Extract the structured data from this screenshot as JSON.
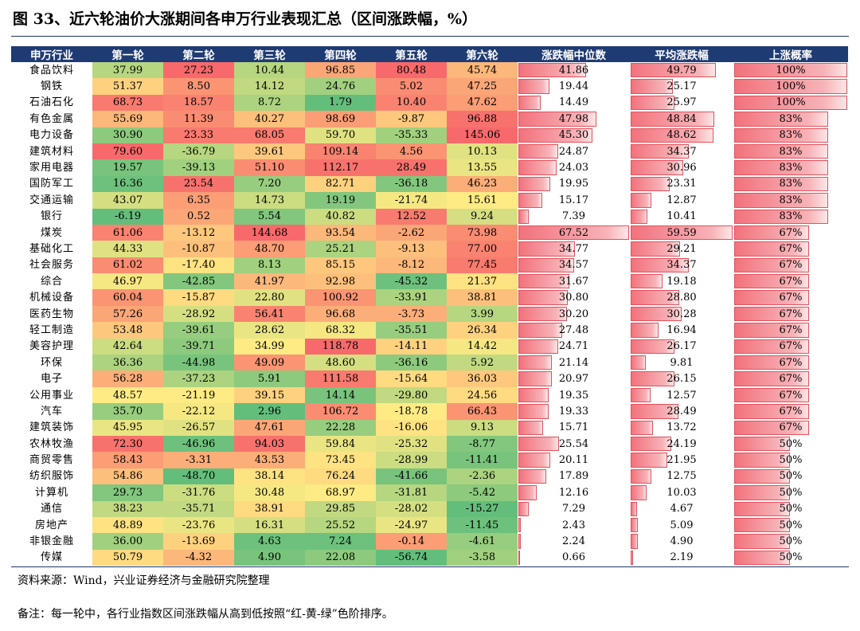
{
  "title": "图 33、近六轮油价大涨期间各申万行业表现汇总（区间涨跌幅，%）",
  "chart_data": {
    "type": "table",
    "columns": [
      "申万行业",
      "第一轮",
      "第二轮",
      "第三轮",
      "第四轮",
      "第五轮",
      "第六轮",
      "涨跌幅中位数",
      "平均涨跌幅",
      "上涨概率"
    ],
    "rows": [
      {
        "industry": "食品饮料",
        "rounds": [
          "37.99",
          "27.23",
          "10.44",
          "96.85",
          "80.48",
          "45.74"
        ],
        "median": "41.86",
        "mean": "49.79",
        "prob": "100%"
      },
      {
        "industry": "钢铁",
        "rounds": [
          "51.37",
          "8.50",
          "14.12",
          "24.76",
          "5.02",
          "47.25"
        ],
        "median": "19.44",
        "mean": "25.17",
        "prob": "100%"
      },
      {
        "industry": "石油石化",
        "rounds": [
          "68.73",
          "18.57",
          "8.72",
          "1.79",
          "10.40",
          "47.62"
        ],
        "median": "14.49",
        "mean": "25.97",
        "prob": "100%"
      },
      {
        "industry": "有色金属",
        "rounds": [
          "55.69",
          "11.39",
          "40.27",
          "98.69",
          "-9.87",
          "96.88"
        ],
        "median": "47.98",
        "mean": "48.84",
        "prob": "83%"
      },
      {
        "industry": "电力设备",
        "rounds": [
          "30.90",
          "23.33",
          "68.05",
          "59.70",
          "-35.33",
          "145.06"
        ],
        "median": "45.30",
        "mean": "48.62",
        "prob": "83%"
      },
      {
        "industry": "建筑材料",
        "rounds": [
          "79.60",
          "-36.79",
          "39.61",
          "109.14",
          "4.56",
          "10.13"
        ],
        "median": "24.87",
        "mean": "34.37",
        "prob": "83%"
      },
      {
        "industry": "家用电器",
        "rounds": [
          "19.57",
          "-39.13",
          "51.10",
          "112.17",
          "28.49",
          "13.55"
        ],
        "median": "24.03",
        "mean": "30.96",
        "prob": "83%"
      },
      {
        "industry": "国防军工",
        "rounds": [
          "16.36",
          "23.54",
          "7.20",
          "82.71",
          "-36.18",
          "46.23"
        ],
        "median": "19.95",
        "mean": "23.31",
        "prob": "83%"
      },
      {
        "industry": "交通运输",
        "rounds": [
          "43.07",
          "6.35",
          "14.73",
          "19.19",
          "-21.74",
          "15.61"
        ],
        "median": "15.17",
        "mean": "12.87",
        "prob": "83%"
      },
      {
        "industry": "银行",
        "rounds": [
          "-6.19",
          "0.52",
          "5.54",
          "40.82",
          "12.52",
          "9.24"
        ],
        "median": "7.39",
        "mean": "10.41",
        "prob": "83%"
      },
      {
        "industry": "煤炭",
        "rounds": [
          "61.06",
          "-13.12",
          "144.68",
          "93.54",
          "-2.62",
          "73.98"
        ],
        "median": "67.52",
        "mean": "59.59",
        "prob": "67%"
      },
      {
        "industry": "基础化工",
        "rounds": [
          "44.33",
          "-10.87",
          "48.70",
          "25.21",
          "-9.13",
          "77.00"
        ],
        "median": "34.77",
        "mean": "29.21",
        "prob": "67%"
      },
      {
        "industry": "社会服务",
        "rounds": [
          "61.02",
          "-17.40",
          "8.13",
          "85.15",
          "-8.12",
          "77.45"
        ],
        "median": "34.57",
        "mean": "34.37",
        "prob": "67%"
      },
      {
        "industry": "综合",
        "rounds": [
          "46.97",
          "-42.85",
          "41.97",
          "92.98",
          "-45.32",
          "21.37"
        ],
        "median": "31.67",
        "mean": "19.18",
        "prob": "67%"
      },
      {
        "industry": "机械设备",
        "rounds": [
          "60.04",
          "-15.87",
          "22.80",
          "100.92",
          "-33.91",
          "38.81"
        ],
        "median": "30.80",
        "mean": "28.80",
        "prob": "67%"
      },
      {
        "industry": "医药生物",
        "rounds": [
          "57.26",
          "-28.92",
          "56.41",
          "96.68",
          "-3.73",
          "3.99"
        ],
        "median": "30.20",
        "mean": "30.28",
        "prob": "67%"
      },
      {
        "industry": "轻工制造",
        "rounds": [
          "53.48",
          "-39.61",
          "28.62",
          "68.32",
          "-35.51",
          "26.34"
        ],
        "median": "27.48",
        "mean": "16.94",
        "prob": "67%"
      },
      {
        "industry": "美容护理",
        "rounds": [
          "42.64",
          "-39.71",
          "34.99",
          "118.78",
          "-14.11",
          "14.42"
        ],
        "median": "24.71",
        "mean": "26.17",
        "prob": "67%"
      },
      {
        "industry": "环保",
        "rounds": [
          "36.36",
          "-44.98",
          "49.09",
          "48.60",
          "-36.16",
          "5.92"
        ],
        "median": "21.14",
        "mean": "9.81",
        "prob": "67%"
      },
      {
        "industry": "电子",
        "rounds": [
          "56.28",
          "-37.23",
          "5.91",
          "111.58",
          "-15.64",
          "36.03"
        ],
        "median": "20.97",
        "mean": "26.15",
        "prob": "67%"
      },
      {
        "industry": "公用事业",
        "rounds": [
          "48.57",
          "-21.19",
          "39.15",
          "14.14",
          "-29.80",
          "24.56"
        ],
        "median": "19.35",
        "mean": "12.57",
        "prob": "67%"
      },
      {
        "industry": "汽车",
        "rounds": [
          "35.70",
          "-22.12",
          "2.96",
          "106.72",
          "-18.78",
          "66.43"
        ],
        "median": "19.33",
        "mean": "28.49",
        "prob": "67%"
      },
      {
        "industry": "建筑装饰",
        "rounds": [
          "45.95",
          "-26.57",
          "47.61",
          "22.28",
          "-16.06",
          "9.13"
        ],
        "median": "15.71",
        "mean": "13.72",
        "prob": "67%"
      },
      {
        "industry": "农林牧渔",
        "rounds": [
          "72.30",
          "-46.96",
          "94.03",
          "59.84",
          "-25.32",
          "-8.77"
        ],
        "median": "25.54",
        "mean": "24.19",
        "prob": "50%"
      },
      {
        "industry": "商贸零售",
        "rounds": [
          "58.43",
          "-3.31",
          "43.53",
          "73.45",
          "-28.99",
          "-11.41"
        ],
        "median": "20.11",
        "mean": "21.95",
        "prob": "50%"
      },
      {
        "industry": "纺织服饰",
        "rounds": [
          "54.86",
          "-48.70",
          "38.14",
          "76.24",
          "-41.66",
          "-2.36"
        ],
        "median": "17.89",
        "mean": "12.75",
        "prob": "50%"
      },
      {
        "industry": "计算机",
        "rounds": [
          "29.73",
          "-31.76",
          "30.48",
          "68.97",
          "-31.81",
          "-5.42"
        ],
        "median": "12.16",
        "mean": "10.03",
        "prob": "50%"
      },
      {
        "industry": "通信",
        "rounds": [
          "38.23",
          "-35.71",
          "38.91",
          "29.85",
          "-28.02",
          "-15.27"
        ],
        "median": "7.29",
        "mean": "4.67",
        "prob": "50%"
      },
      {
        "industry": "房地产",
        "rounds": [
          "48.89",
          "-23.76",
          "16.31",
          "25.52",
          "-24.97",
          "-11.45"
        ],
        "median": "2.43",
        "mean": "5.09",
        "prob": "50%"
      },
      {
        "industry": "非银金融",
        "rounds": [
          "36.00",
          "-13.69",
          "4.63",
          "7.24",
          "-0.14",
          "-4.61"
        ],
        "median": "2.24",
        "mean": "4.90",
        "prob": "50%"
      },
      {
        "industry": "传媒",
        "rounds": [
          "50.79",
          "-4.32",
          "4.90",
          "22.08",
          "-56.74",
          "-3.58"
        ],
        "median": "0.66",
        "mean": "2.19",
        "prob": "50%"
      }
    ]
  },
  "colors": {
    "header_bg": "#1f3b73",
    "scale_high": "#f8696b",
    "scale_mid": "#ffeb84",
    "scale_low": "#63be7b"
  },
  "footer": {
    "source": "资料来源：Wind，兴业证券经济与金融研究院整理",
    "note": "备注：每一轮中，各行业指数区间涨跌幅从高到低按照“红-黄-绿”色阶排序。"
  }
}
